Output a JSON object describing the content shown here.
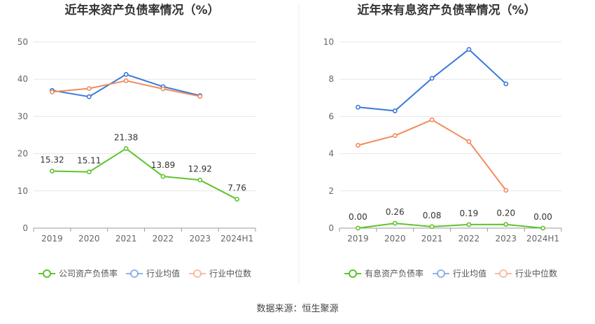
{
  "source": "数据来源：恒生聚源",
  "chart_data": [
    {
      "type": "line",
      "title": "近年来资产负债率情况（%）",
      "categories": [
        "2019",
        "2020",
        "2021",
        "2022",
        "2023",
        "2024H1"
      ],
      "ylim": [
        0,
        50
      ],
      "yticks": [
        0,
        10,
        20,
        30,
        40,
        50
      ],
      "grid": true,
      "legend_position": "bottom",
      "series": [
        {
          "name": "公司资产负债率",
          "color": "#5ec42e",
          "values": [
            15.32,
            15.11,
            21.38,
            13.89,
            12.92,
            7.76
          ],
          "labels": [
            "15.32",
            "15.11",
            "21.38",
            "13.89",
            "12.92",
            "7.76"
          ]
        },
        {
          "name": "行业均值",
          "color": "#3a78d8",
          "values": [
            37.0,
            35.3,
            41.3,
            38.0,
            35.6,
            null
          ]
        },
        {
          "name": "行业中位数",
          "color": "#f28a5c",
          "values": [
            36.6,
            37.5,
            39.6,
            37.4,
            35.4,
            null
          ]
        }
      ]
    },
    {
      "type": "line",
      "title": "近年来有息资产负债率情况（%）",
      "categories": [
        "2019",
        "2020",
        "2021",
        "2022",
        "2023",
        "2024H1"
      ],
      "ylim": [
        0,
        10
      ],
      "yticks": [
        0,
        2,
        4,
        6,
        8,
        10
      ],
      "grid": true,
      "legend_position": "bottom",
      "series": [
        {
          "name": "有息资产负债率",
          "color": "#5ec42e",
          "values": [
            0.0,
            0.26,
            0.08,
            0.19,
            0.2,
            0.0
          ],
          "labels": [
            "0.00",
            "0.26",
            "0.08",
            "0.19",
            "0.20",
            "0.00"
          ]
        },
        {
          "name": "行业均值",
          "color": "#3a78d8",
          "values": [
            6.5,
            6.3,
            8.05,
            9.6,
            7.75,
            null
          ]
        },
        {
          "name": "行业中位数",
          "color": "#f28a5c",
          "values": [
            4.45,
            4.97,
            5.82,
            4.65,
            2.03,
            null
          ]
        }
      ]
    }
  ]
}
